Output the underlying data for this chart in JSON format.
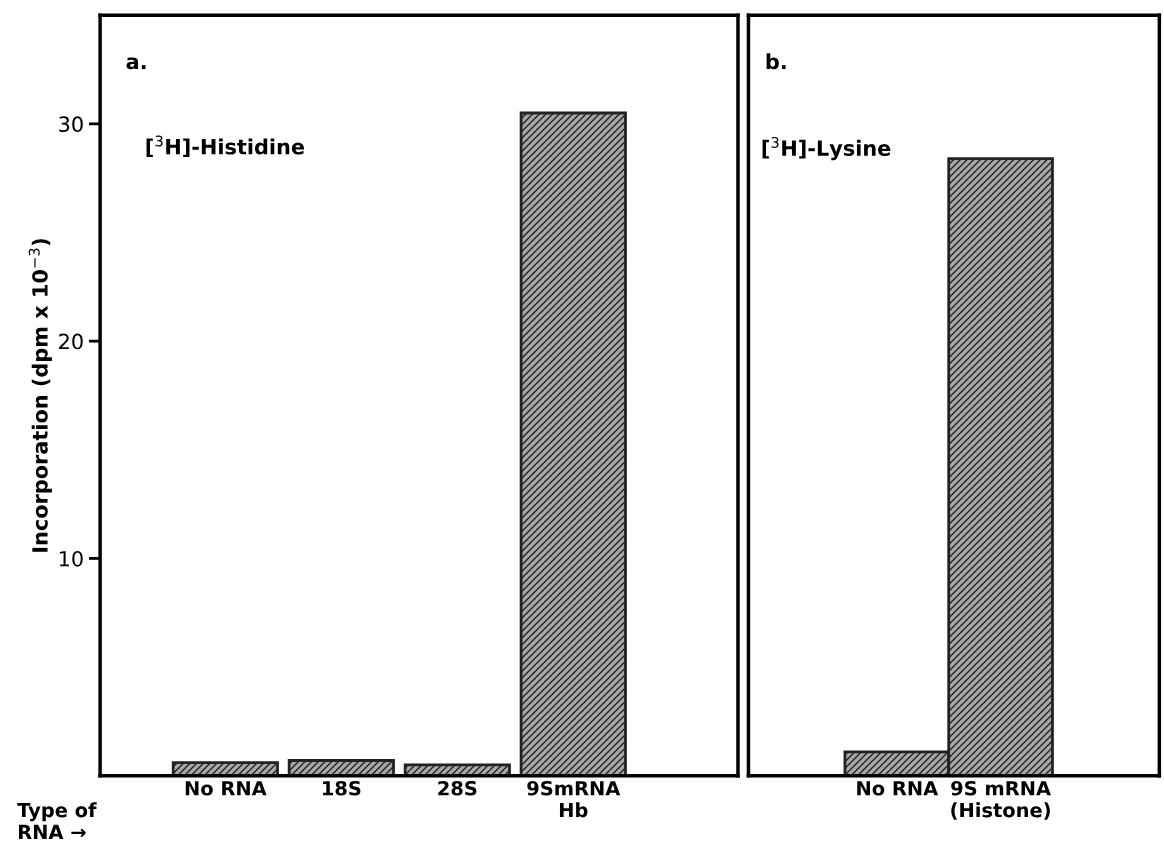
{
  "chart_data": [
    {
      "type": "bar",
      "categories": [
        "No RNA",
        "18S",
        "28S",
        "9SmRNA\nHb"
      ],
      "values": [
        0.6,
        0.7,
        0.5,
        30.5
      ],
      "color": "#222222",
      "ylabel": "Incorporation (dpm x 10$^{−3}$)",
      "ylim": [
        0,
        35
      ],
      "yticks": [
        10,
        20,
        30
      ],
      "grid": false,
      "annotations": [
        "a.",
        "[$^{3}$H]-Histidine",
        "Type of\nRNA →"
      ]
    },
    {
      "type": "bar",
      "categories": [
        "No RNA",
        "9S mRNA\n(Histone)"
      ],
      "values": [
        1.1,
        28.4
      ],
      "color": "#222222",
      "ylim": [
        0,
        35
      ],
      "tick_labels": "x",
      "grid": false,
      "annotations": [
        "b.",
        "[$^{3}$H]-Lysine"
      ]
    }
  ]
}
